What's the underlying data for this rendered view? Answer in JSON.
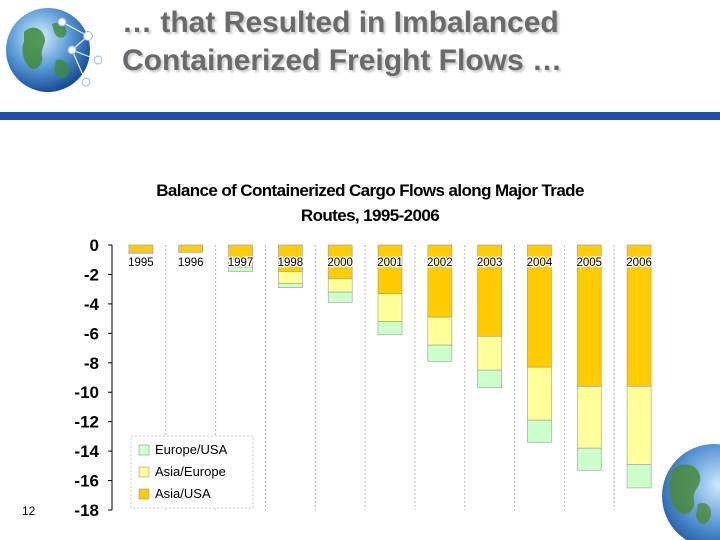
{
  "slide": {
    "title_line1": "… that Resulted in Imbalanced",
    "title_line2": "Containerized Freight Flows …",
    "page_number": "12"
  },
  "decor": {
    "top_icon": "globe-network-icon",
    "bottom_icon": "globe-icon"
  },
  "chart_data": {
    "type": "bar",
    "stacked": true,
    "title": "Balance of Containerized Cargo Flows along Major Trade Routes, 1995-2006",
    "title_lines": [
      "Balance of Containerized Cargo Flows along Major Trade",
      "Routes, 1995-2006"
    ],
    "categories": [
      "1995",
      "1996",
      "1997",
      "1998",
      "2000",
      "2001",
      "2002",
      "2003",
      "2004",
      "2005",
      "2006"
    ],
    "series": [
      {
        "name": "Asia/USA",
        "color": "#ffcc00",
        "values": [
          -0.5,
          -0.5,
          -1.0,
          -1.8,
          -2.3,
          -3.3,
          -4.9,
          -6.2,
          -8.3,
          -9.6,
          -9.6
        ]
      },
      {
        "name": "Asia/Europe",
        "color": "#ffff99",
        "values": [
          -0.1,
          0.0,
          -0.5,
          -0.8,
          -0.9,
          -1.9,
          -1.9,
          -2.3,
          -3.6,
          -4.2,
          -5.3
        ]
      },
      {
        "name": "Europe/USA",
        "color": "#ccffcc",
        "values": [
          0.0,
          0.0,
          -0.3,
          -0.3,
          -0.7,
          -0.9,
          -1.1,
          -1.2,
          -1.5,
          -1.5,
          -1.6
        ]
      }
    ],
    "legend_order": [
      "Europe/USA",
      "Asia/Europe",
      "Asia/USA"
    ],
    "legend_position": "bottom-left",
    "xlabel": "",
    "ylabel": "",
    "ylim": [
      -18,
      0
    ],
    "yticks": [
      0,
      -2,
      -4,
      -6,
      -8,
      -10,
      -12,
      -14,
      -16,
      -18
    ],
    "ytick_labels": [
      "0",
      "-2",
      "-4",
      "-6",
      "-8",
      "-10",
      "-12",
      "-14",
      "-16",
      "-18"
    ],
    "x_labels_position": "top",
    "grid": "dashed-vertical"
  }
}
